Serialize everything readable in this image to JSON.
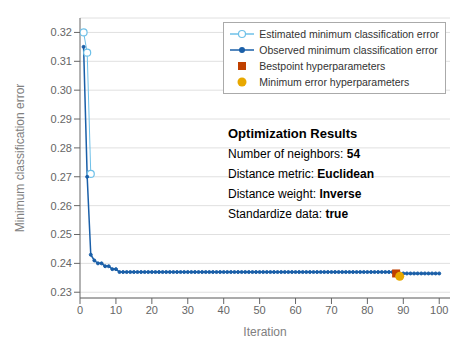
{
  "chart_data": {
    "type": "line",
    "xlabel": "Iteration",
    "ylabel": "Minimum classification error",
    "xlim": [
      0,
      103
    ],
    "ylim": [
      0.228,
      0.325
    ],
    "xticks": [
      0,
      10,
      20,
      30,
      40,
      50,
      60,
      70,
      80,
      90,
      100
    ],
    "yticks": [
      0.23,
      0.24,
      0.25,
      0.26,
      0.27,
      0.28,
      0.29,
      {
        "value": 0.3,
        "label": "0.30"
      },
      0.31,
      0.32
    ],
    "grid": "y",
    "legend": "upper right",
    "series": [
      {
        "name": "Estimated minimum classification error",
        "type": "line",
        "color": "#6ec0e8",
        "marker": "open_circle",
        "line_style": "solid",
        "x": [
          1,
          2,
          3
        ],
        "values": [
          0.32,
          0.313,
          0.271
        ]
      },
      {
        "name": "Observed minimum classification error",
        "type": "line",
        "color": "#1a5fa8",
        "marker": "circle",
        "line_style": "solid",
        "x": [
          1,
          2,
          3,
          4,
          5,
          6,
          7,
          8,
          9,
          10,
          11,
          12,
          13,
          14,
          15,
          16,
          17,
          18,
          19,
          20,
          21,
          22,
          23,
          24,
          25,
          26,
          27,
          28,
          29,
          30,
          31,
          32,
          33,
          34,
          35,
          36,
          37,
          38,
          39,
          40,
          41,
          42,
          43,
          44,
          45,
          46,
          47,
          48,
          49,
          50,
          51,
          52,
          53,
          54,
          55,
          56,
          57,
          58,
          59,
          60,
          61,
          62,
          63,
          64,
          65,
          66,
          67,
          68,
          69,
          70,
          71,
          72,
          73,
          74,
          75,
          76,
          77,
          78,
          79,
          80,
          81,
          82,
          83,
          84,
          85,
          86,
          87,
          88,
          89,
          90,
          91,
          92,
          93,
          94,
          95,
          96,
          97,
          98,
          99,
          100
        ],
        "values": [
          0.315,
          0.27,
          0.243,
          0.241,
          0.24,
          0.24,
          0.239,
          0.239,
          0.238,
          0.238,
          0.237,
          0.237,
          0.237,
          0.237,
          0.237,
          0.237,
          0.237,
          0.237,
          0.237,
          0.237,
          0.237,
          0.237,
          0.237,
          0.237,
          0.237,
          0.237,
          0.237,
          0.237,
          0.237,
          0.237,
          0.237,
          0.237,
          0.237,
          0.237,
          0.237,
          0.237,
          0.237,
          0.237,
          0.237,
          0.237,
          0.237,
          0.237,
          0.237,
          0.237,
          0.237,
          0.237,
          0.237,
          0.237,
          0.237,
          0.237,
          0.237,
          0.237,
          0.237,
          0.237,
          0.237,
          0.237,
          0.237,
          0.237,
          0.237,
          0.237,
          0.237,
          0.237,
          0.237,
          0.237,
          0.237,
          0.237,
          0.237,
          0.237,
          0.237,
          0.237,
          0.237,
          0.237,
          0.237,
          0.237,
          0.237,
          0.237,
          0.237,
          0.237,
          0.237,
          0.237,
          0.237,
          0.237,
          0.237,
          0.237,
          0.237,
          0.237,
          0.237,
          0.237,
          0.2365,
          0.2365,
          0.2365,
          0.2365,
          0.2365,
          0.2365,
          0.2365,
          0.2365,
          0.2365,
          0.2365,
          0.2365,
          0.2365
        ]
      },
      {
        "name": "Bestpoint hyperparameters",
        "type": "scatter",
        "color": "#c04000",
        "marker": "square",
        "x": [
          88
        ],
        "values": [
          0.2365
        ]
      },
      {
        "name": "Minimum error hyperparameters",
        "type": "scatter",
        "color": "#e8a800",
        "marker": "circle",
        "x": [
          89
        ],
        "values": [
          0.2355
        ]
      }
    ],
    "annotation": {
      "title": "Optimization Results",
      "lines": [
        {
          "text": "Number of neighbors: ",
          "bold": "54"
        },
        {
          "text": "Distance metric: ",
          "bold": "Euclidean"
        },
        {
          "text": "Distance weight: ",
          "bold": "Inverse"
        },
        {
          "text": "Standardize data: ",
          "bold": "true"
        }
      ]
    }
  }
}
